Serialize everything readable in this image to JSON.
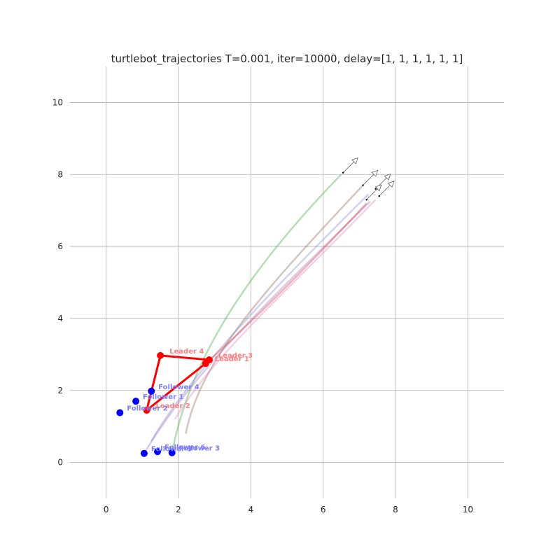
{
  "chart_data": {
    "type": "scatter",
    "title": "turtlebot_trajectories T=0.001, iter=10000, delay=[1, 1, 1, 1, 1, 1]",
    "xlabel": "",
    "ylabel": "",
    "xlim": [
      -1,
      11
    ],
    "ylim": [
      -1,
      11
    ],
    "x_ticks": [
      "0",
      "2",
      "4",
      "6",
      "8",
      "10"
    ],
    "y_ticks": [
      "0",
      "2",
      "4",
      "6",
      "8",
      "10"
    ],
    "grid": true,
    "colors": {
      "leader": "#ff0000",
      "follower": "#0000ff",
      "leader_label": "#ff8080",
      "follower_label": "#8080ff",
      "grid": "#b0b0b0"
    },
    "leaders": [
      {
        "label": "Leader 1",
        "x": 2.75,
        "y": 2.75
      },
      {
        "label": "Leader 2",
        "x": 1.12,
        "y": 1.45
      },
      {
        "label": "Leader 3",
        "x": 2.85,
        "y": 2.85
      },
      {
        "label": "Leader 4",
        "x": 1.5,
        "y": 2.97
      }
    ],
    "leader_polygon_order": [
      "Leader 1",
      "Leader 2",
      "Leader 4",
      "Leader 3"
    ],
    "followers": [
      {
        "label": "Follower 1",
        "x": 0.82,
        "y": 1.7
      },
      {
        "label": "Follower 2",
        "x": 0.38,
        "y": 1.38
      },
      {
        "label": "Follower 3",
        "x": 1.82,
        "y": 0.27
      },
      {
        "label": "Follower 4",
        "x": 1.25,
        "y": 1.98
      },
      {
        "label": "Follower 5",
        "x": 1.05,
        "y": 0.25
      },
      {
        "label": "Follower 6",
        "x": 1.42,
        "y": 0.3
      }
    ],
    "trajectories": [
      {
        "color": "#2ca02c",
        "points": [
          [
            1.82,
            0.27
          ],
          [
            2.2,
            2.2
          ],
          [
            3.2,
            4.6
          ],
          [
            6.5,
            8.0
          ]
        ]
      },
      {
        "color": "#8c564b",
        "points": [
          [
            2.2,
            0.8
          ],
          [
            2.6,
            2.8
          ],
          [
            4.2,
            4.6
          ],
          [
            7.1,
            7.7
          ]
        ]
      },
      {
        "color": "#7f7fcc",
        "points": [
          [
            1.25,
            0.6
          ],
          [
            2.3,
            2.4
          ],
          [
            4.3,
            4.5
          ],
          [
            7.25,
            7.45
          ]
        ]
      },
      {
        "color": "#9467bd",
        "points": [
          [
            1.05,
            0.25
          ],
          [
            2.4,
            2.5
          ],
          [
            4.4,
            4.4
          ],
          [
            7.3,
            7.25
          ]
        ]
      },
      {
        "color": "#d62728",
        "points": [
          [
            2.75,
            2.75
          ],
          [
            4.5,
            4.3
          ],
          [
            7.2,
            7.2
          ]
        ]
      },
      {
        "color": "#e377c2",
        "points": [
          [
            1.9,
            1.2
          ],
          [
            3.0,
            3.0
          ],
          [
            4.6,
            4.35
          ],
          [
            7.45,
            7.3
          ]
        ]
      }
    ],
    "arrows": [
      {
        "x": 6.55,
        "y": 8.05
      },
      {
        "x": 7.1,
        "y": 7.7
      },
      {
        "x": 7.45,
        "y": 7.6
      },
      {
        "x": 7.2,
        "y": 7.3
      },
      {
        "x": 7.55,
        "y": 7.4
      }
    ]
  }
}
